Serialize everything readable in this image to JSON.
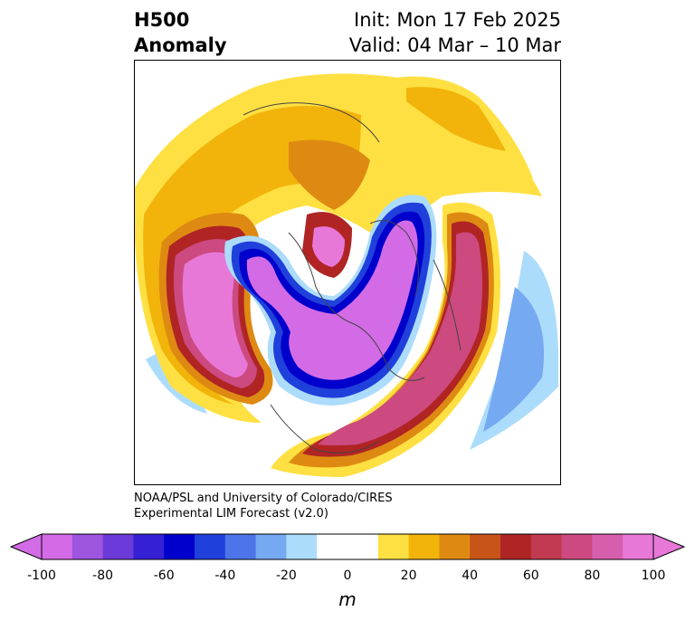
{
  "title": {
    "line1_left": "H500",
    "line2_left": "Anomaly",
    "line1_right": "Init: Mon 17 Feb 2025",
    "line2_right": "Valid: 04 Mar – 10 Mar"
  },
  "credits": {
    "line1": "NOAA/PSL and University of Colorado/CIRES",
    "line2": "Experimental LIM Forecast (v2.0)"
  },
  "colorbar": {
    "units": "m",
    "ticks": [
      "-100",
      "-80",
      "-60",
      "-40",
      "-20",
      "0",
      "20",
      "40",
      "60",
      "80",
      "100"
    ],
    "levels": [
      -100,
      -90,
      -80,
      -70,
      -60,
      -50,
      -40,
      -30,
      -20,
      -10,
      10,
      20,
      30,
      40,
      50,
      60,
      70,
      80,
      90,
      100
    ],
    "colors": [
      "#d36be6",
      "#9e55e0",
      "#6b3ad8",
      "#3520d6",
      "#0000cc",
      "#2040dc",
      "#4d74e8",
      "#75a9f2",
      "#acdcfb",
      "#ffffff",
      "#ffe042",
      "#f2b40a",
      "#de8a12",
      "#c85418",
      "#b02424",
      "#c23a52",
      "#cc4a80",
      "#d65fad",
      "#e878d8"
    ],
    "under_color": "#d36be6",
    "over_color": "#e878d8"
  },
  "map": {
    "projection": "north-polar-stereographic",
    "field": "500 hPa geopotential height anomaly"
  }
}
